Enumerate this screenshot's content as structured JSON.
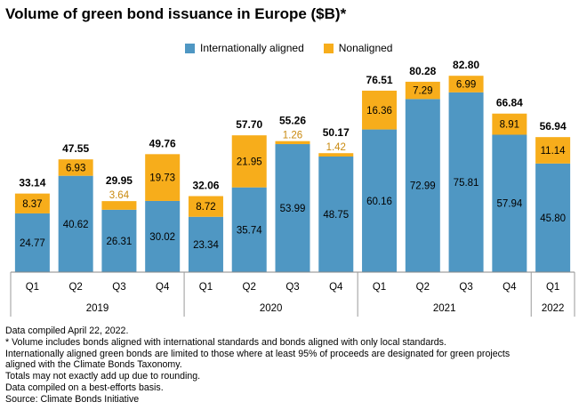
{
  "title": "Volume of green bond issuance in Europe ($B)*",
  "colors": {
    "aligned": "#4f97c3",
    "nonaligned": "#f7ad1b",
    "small_label": "#c98a10"
  },
  "chart_data": {
    "type": "bar",
    "stacked": true,
    "title": "Volume of green bond issuance in Europe ($B)*",
    "categories": [
      "Q1",
      "Q2",
      "Q3",
      "Q4",
      "Q1",
      "Q2",
      "Q3",
      "Q4",
      "Q1",
      "Q2",
      "Q3",
      "Q4",
      "Q1"
    ],
    "groups": [
      {
        "label": "2019",
        "count": 4
      },
      {
        "label": "2020",
        "count": 4
      },
      {
        "label": "2021",
        "count": 4
      },
      {
        "label": "2022",
        "count": 1
      }
    ],
    "series": [
      {
        "name": "Internationally aligned",
        "values": [
          24.77,
          40.62,
          26.31,
          30.02,
          23.34,
          35.74,
          53.99,
          48.75,
          60.16,
          72.99,
          75.81,
          57.94,
          45.8
        ]
      },
      {
        "name": "Nonaligned",
        "values": [
          8.37,
          6.93,
          3.64,
          19.73,
          8.72,
          21.95,
          1.26,
          1.42,
          16.36,
          7.29,
          6.99,
          8.91,
          11.14
        ]
      }
    ],
    "value_labels": {
      "aligned": [
        "24.77",
        "40.62",
        "26.31",
        "30.02",
        "23.34",
        "35.74",
        "53.99",
        "48.75",
        "60.16",
        "72.99",
        "75.81",
        "57.94",
        "45.80"
      ],
      "nonaligned": [
        "8.37",
        "6.93",
        "3.64",
        "19.73",
        "8.72",
        "21.95",
        "1.26",
        "1.42",
        "16.36",
        "7.29",
        "6.99",
        "8.91",
        "11.14"
      ]
    },
    "totals": [
      "33.14",
      "47.55",
      "29.95",
      "49.76",
      "32.06",
      "57.70",
      "55.26",
      "50.17",
      "76.51",
      "80.28",
      "82.80",
      "66.84",
      "56.94"
    ],
    "ylim": [
      0,
      90
    ],
    "grid": false,
    "legend_position": "top"
  },
  "notes": [
    "Data compiled April 22, 2022.",
    "* Volume includes bonds aligned with international standards and bonds aligned with only local standards.",
    "Internationally aligned green bonds are limited to those where at least 95% of proceeds are designated for green projects",
    "aligned with the Climate Bonds Taxonomy.",
    "Totals may not exactly add up due to rounding.",
    "Data compiled on a best-efforts basis.",
    "Source: Climate Bonds Initiative"
  ]
}
